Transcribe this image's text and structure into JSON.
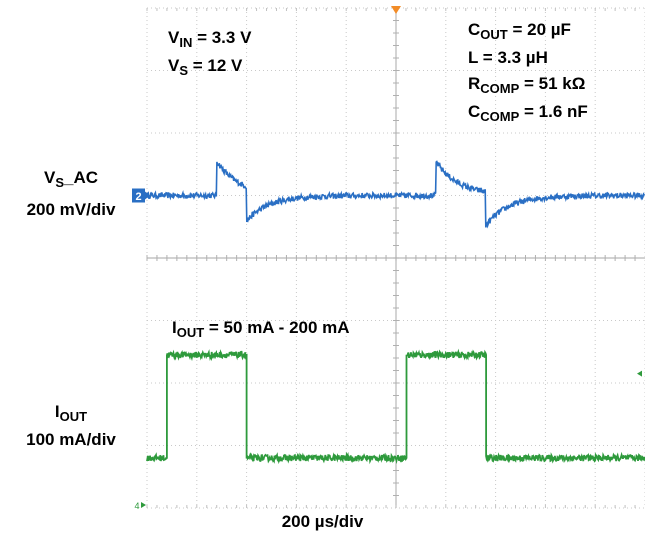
{
  "chart_data": {
    "type": "line",
    "title": "",
    "xlabel": "200 µs/div",
    "grid": true,
    "x_divisions": 10,
    "y_divisions": 8,
    "series": [
      {
        "name": "VS_AC",
        "color": "#2a6fc4",
        "scale": "200 mV/div",
        "channel_marker": "2",
        "baseline_div": 5,
        "dip_depth_div": 0.55,
        "overshoot_div": 0.55,
        "load_step_up_times_div": [
          2.0,
          6.8
        ],
        "load_step_down_times_div": [
          1.4,
          5.8
        ]
      },
      {
        "name": "IOUT",
        "color": "#2e9a3c",
        "scale": "100 mA/div",
        "channel_marker": "4",
        "low_level_div": 0.8,
        "high_level_div": 2.45,
        "high_intervals_div": [
          [
            0.4,
            2.0
          ],
          [
            5.2,
            6.8
          ]
        ]
      }
    ]
  },
  "labels": {
    "vin_value": " = 3.3 V",
    "vs_value": " = 12 V",
    "cout_value": " = 20 µF",
    "l_text": "L = 3.3 µH",
    "rcomp_value": " = 51 kΩ",
    "ccomp_value": " = 1.6 nF",
    "iout_range_value": " = 50 mA - 200 mA",
    "ch1_scale": "200 mV/div",
    "ch2_scale": "100 mA/div",
    "timebase": "200 µs/div"
  }
}
